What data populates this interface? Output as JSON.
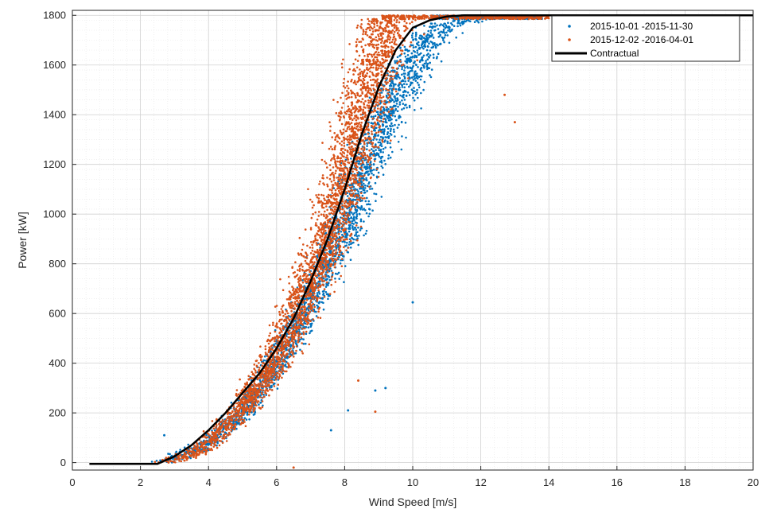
{
  "chart_data": {
    "type": "scatter",
    "title": "",
    "xlabel": "Wind Speed [m/s]",
    "ylabel": "Power [kW]",
    "xlim": [
      0,
      20
    ],
    "ylim": [
      -30,
      1820
    ],
    "xticks": [
      0,
      2,
      4,
      6,
      8,
      10,
      12,
      14,
      16,
      18,
      20
    ],
    "yticks": [
      0,
      200,
      400,
      600,
      800,
      1000,
      1200,
      1400,
      1600,
      1800
    ],
    "grid": true,
    "minor_grid": true,
    "legend_position": "top-right",
    "series": [
      {
        "name": "2015-10-01 -2015-11-30",
        "kind": "scatter",
        "color": "#0072BD",
        "band_center": [
          [
            2.6,
            0
          ],
          [
            3,
            15
          ],
          [
            4,
            80
          ],
          [
            5,
            200
          ],
          [
            6,
            400
          ],
          [
            6.5,
            520
          ],
          [
            7,
            650
          ],
          [
            7.5,
            800
          ],
          [
            8,
            950
          ],
          [
            8.5,
            1150
          ],
          [
            9,
            1330
          ],
          [
            9.5,
            1480
          ],
          [
            10,
            1620
          ],
          [
            10.5,
            1710
          ],
          [
            11,
            1760
          ],
          [
            12,
            1790
          ],
          [
            13,
            1800
          ],
          [
            13.8,
            1800
          ]
        ],
        "band_spread_ms": 0.6,
        "outliers": [
          [
            2.7,
            110
          ],
          [
            8.1,
            210
          ],
          [
            9.2,
            300
          ],
          [
            10,
            645
          ],
          [
            7.6,
            130
          ],
          [
            8.9,
            290
          ]
        ]
      },
      {
        "name": "2015-12-02 -2016-04-01",
        "kind": "scatter",
        "color": "#D95319",
        "band_center": [
          [
            2.8,
            0
          ],
          [
            3.5,
            30
          ],
          [
            4,
            80
          ],
          [
            5,
            210
          ],
          [
            6,
            420
          ],
          [
            6.5,
            560
          ],
          [
            7,
            720
          ],
          [
            7.5,
            900
          ],
          [
            8,
            1120
          ],
          [
            8.5,
            1400
          ],
          [
            9,
            1650
          ],
          [
            9.3,
            1800
          ],
          [
            11,
            1800
          ],
          [
            14,
            1800
          ]
        ],
        "band_spread_ms": 0.7,
        "outliers": [
          [
            12.7,
            1480
          ],
          [
            13,
            1370
          ],
          [
            6.5,
            -20
          ],
          [
            8.4,
            330
          ],
          [
            8.9,
            205
          ]
        ]
      },
      {
        "name": "Contractual",
        "kind": "line",
        "color": "#000000",
        "x": [
          0.5,
          1,
          2,
          2.5,
          3,
          3.5,
          4,
          4.5,
          5,
          5.5,
          6,
          6.5,
          7,
          7.5,
          8,
          8.5,
          9,
          9.5,
          10,
          10.5,
          11,
          11.5,
          12,
          13,
          14,
          15,
          16,
          17,
          18,
          19,
          20
        ],
        "y": [
          -5,
          -5,
          -5,
          -5,
          25,
          70,
          130,
          200,
          280,
          360,
          460,
          580,
          730,
          900,
          1100,
          1320,
          1510,
          1660,
          1750,
          1780,
          1795,
          1800,
          1800,
          1800,
          1800,
          1800,
          1800,
          1800,
          1800,
          1800,
          1800
        ]
      }
    ]
  }
}
